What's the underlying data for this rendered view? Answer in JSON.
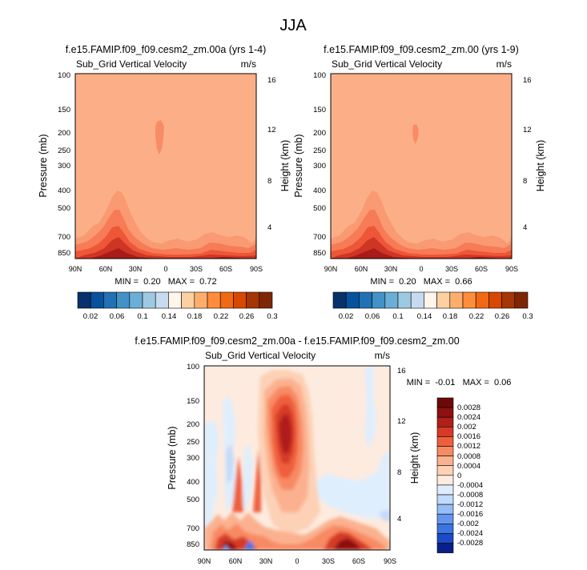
{
  "figure_title": "JJA",
  "colors": {
    "panel_base": "#fcaf86",
    "scale_12": [
      "#08306b",
      "#08519c",
      "#2171b5",
      "#4292c6",
      "#6baed6",
      "#9ecae1",
      "#c6dbef",
      "#fff5eb",
      "#fdd0a2",
      "#fdae6b",
      "#fd8d3c",
      "#f16913",
      "#d94801",
      "#a63603",
      "#7f2704"
    ],
    "cont": [
      "#0a1f8a",
      "#1a4bc9",
      "#3c74e0",
      "#6496ee",
      "#97bdf7",
      "#c2dafb",
      "#dfeefc",
      "#fdebdf",
      "#fcd1b6",
      "#fbb18f",
      "#f88a63",
      "#ef5f3c",
      "#d63a26",
      "#b01f1a",
      "#8e1010",
      "#6e0808"
    ]
  },
  "chart_data": [
    {
      "type": "contour",
      "title": "f.e15.FAMIP.f09_f09.cesm2_zm.00a (yrs 1-4)",
      "subtitle_left": "Sub_Grid Vertical Velocity",
      "subtitle_right": "m/s",
      "ylabel": "Pressure (mb)",
      "ylabel_right": "Height (km)",
      "y_ticks": [
        "100",
        "150",
        "200",
        "250",
        "300",
        "400",
        "500",
        "700",
        "850"
      ],
      "y_ticks_right": [
        "16",
        "12",
        "8",
        "4"
      ],
      "x_ticks": [
        "90N",
        "60N",
        "30N",
        "0",
        "30S",
        "60S",
        "90S"
      ],
      "stats": "MIN =  0.20   MAX =  0.72",
      "colorbar_labels": [
        "0.02",
        "0.06",
        "0.1",
        "0.14",
        "0.18",
        "0.22",
        "0.26",
        "0.3"
      ]
    },
    {
      "type": "contour",
      "title": "f.e15.FAMIP.f09_f09.cesm2_zm.00 (yrs 1-9)",
      "subtitle_left": "Sub_Grid Vertical Velocity",
      "subtitle_right": "m/s",
      "ylabel": "Pressure (mb)",
      "ylabel_right": "Height (km)",
      "y_ticks": [
        "100",
        "150",
        "200",
        "250",
        "300",
        "400",
        "500",
        "700",
        "850"
      ],
      "y_ticks_right": [
        "16",
        "12",
        "8",
        "4"
      ],
      "x_ticks": [
        "90N",
        "60N",
        "30N",
        "0",
        "30S",
        "60S",
        "90S"
      ],
      "stats": "MIN =  0.20   MAX =  0.66",
      "colorbar_labels": [
        "0.02",
        "0.06",
        "0.1",
        "0.14",
        "0.18",
        "0.22",
        "0.26",
        "0.3"
      ]
    },
    {
      "type": "contour",
      "title": "f.e15.FAMIP.f09_f09.cesm2_zm.00a - f.e15.FAMIP.f09_f09.cesm2_zm.00",
      "subtitle_left": "Sub_Grid Vertical Velocity",
      "subtitle_right": "m/s",
      "ylabel": "Pressure (mb)",
      "ylabel_right": "Height (km)",
      "y_ticks": [
        "100",
        "150",
        "200",
        "250",
        "300",
        "400",
        "500",
        "700",
        "850"
      ],
      "y_ticks_right": [
        "16",
        "12",
        "8",
        "4"
      ],
      "x_ticks": [
        "90N",
        "60N",
        "30N",
        "0",
        "30S",
        "60S",
        "90S"
      ],
      "stats": "MIN =  -0.01   MAX =  0.06",
      "colorbar_labels": [
        "0.0028",
        "0.0024",
        "0.002",
        "0.0016",
        "0.0012",
        "0.0008",
        "0.0004",
        "0",
        "-0.0004",
        "-0.0008",
        "-0.0012",
        "-0.0016",
        "-0.002",
        "-0.0024",
        "-0.0028"
      ]
    }
  ]
}
